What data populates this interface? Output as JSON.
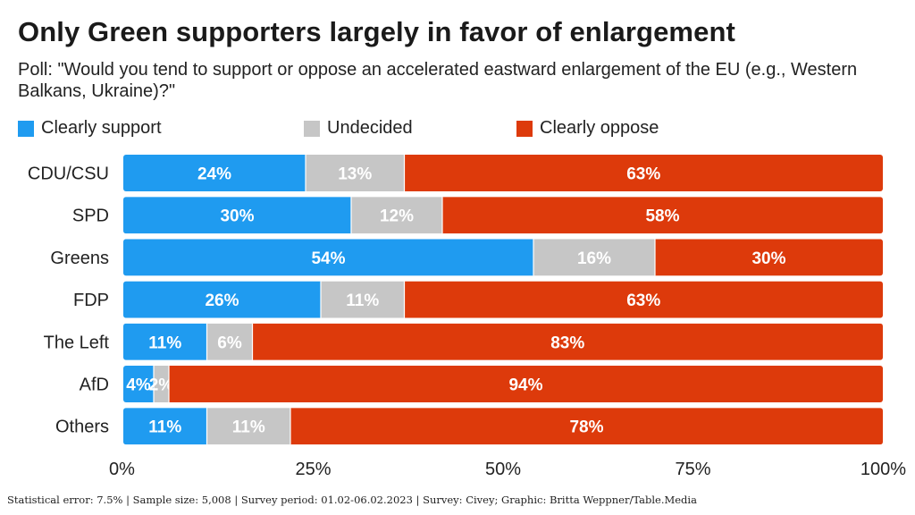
{
  "title": "Only Green supporters largely in favor of enlargement",
  "subtitle": "Poll: \"Would you tend to support or oppose an accelerated eastward enlargement of the EU (e.g., Western Balkans, Ukraine)?\"",
  "footer": "Statistical error: 7.5% | Sample size: 5,008 | Survey period: 01.02-06.02.2023 | Survey: Civey; Graphic: Britta Weppner/Table.Media",
  "colors": {
    "support": "#1f9bf0",
    "undecided": "#c6c6c6",
    "oppose": "#dd3a0b"
  },
  "chart_data": {
    "type": "bar",
    "orientation": "horizontal",
    "stacked": true,
    "categories": [
      "CDU/CSU",
      "SPD",
      "Greens",
      "FDP",
      "The Left",
      "AfD",
      "Others"
    ],
    "series": [
      {
        "name": "Clearly support",
        "values": [
          24,
          30,
          54,
          26,
          11,
          4,
          11
        ]
      },
      {
        "name": "Undecided",
        "values": [
          13,
          12,
          16,
          11,
          6,
          2,
          11
        ]
      },
      {
        "name": "Clearly oppose",
        "values": [
          63,
          58,
          30,
          63,
          83,
          94,
          78
        ]
      }
    ],
    "xlim": [
      0,
      100
    ],
    "xticks": [
      "0%",
      "25%",
      "50%",
      "75%",
      "100%"
    ],
    "legend": "top-left",
    "grid": false
  }
}
